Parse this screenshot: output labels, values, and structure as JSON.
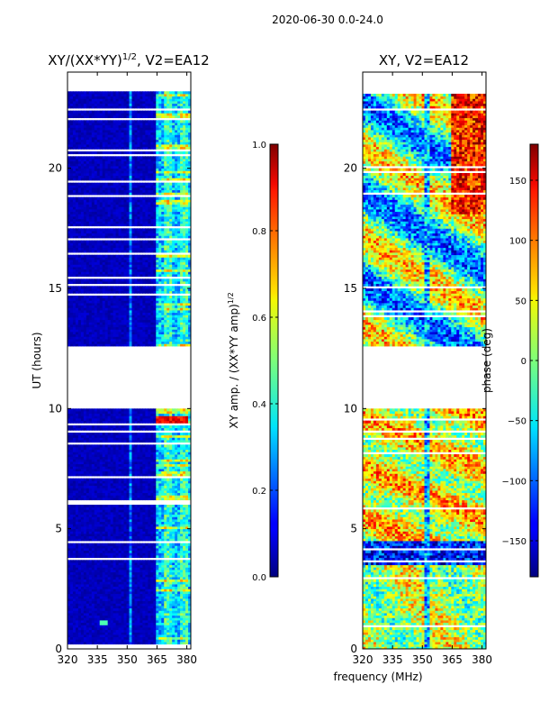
{
  "figure": {
    "suptitle": "2020-06-30 0.0-24.0",
    "xlabel_shared": "frequency (MHz)"
  },
  "colors": {
    "axes_edge": "#000000",
    "background": "#ffffff",
    "flag_gap": "#ffffff"
  },
  "chart_data": [
    {
      "type": "heatmap",
      "title_prefix": "XY/(XX*YY)",
      "title_exp": "1/2",
      "title_suffix": ", V2=EA12",
      "xlabel": "",
      "ylabel": "UT (hours)",
      "xlim": [
        320,
        382
      ],
      "ylim": [
        0,
        24
      ],
      "xticks": [
        320,
        335,
        350,
        365,
        380
      ],
      "yticks": [
        0,
        5,
        10,
        15,
        20
      ],
      "data_time_range": [
        0,
        23.2
      ],
      "flagged_time_ranges": [
        [
          9.95,
          12.5
        ]
      ],
      "colormap": "jet",
      "colorbar": {
        "label_prefix": "XY amp. / (XX*YY amp)",
        "label_exp": "1/2",
        "range": [
          0.0,
          1.0
        ],
        "ticks": [
          0.0,
          0.2,
          0.4,
          0.6,
          0.8,
          1.0
        ],
        "tick_labels": [
          "0.0",
          "0.2",
          "0.4",
          "0.6",
          "0.8",
          "1.0"
        ]
      },
      "features": [
        {
          "freq_range": [
            320,
            350
          ],
          "typical_value": 0.05
        },
        {
          "freq_range": [
            351,
            352
          ],
          "typical_value": 0.3
        },
        {
          "freq_range": [
            364,
            382
          ],
          "typical_value": 0.35
        },
        {
          "freq_range": [
            364,
            380
          ],
          "time_range": [
            9.2,
            9.6
          ],
          "typical_value": 0.85
        }
      ]
    },
    {
      "type": "heatmap",
      "title": "XY, V2=EA12",
      "xlabel": "",
      "ylabel": "",
      "xlim": [
        320,
        382
      ],
      "ylim": [
        0,
        24
      ],
      "xticks": [
        320,
        335,
        350,
        365,
        380
      ],
      "yticks": [
        0,
        5,
        10,
        15,
        20
      ],
      "data_time_range": [
        0,
        23.2
      ],
      "flagged_time_ranges": [
        [
          9.95,
          12.5
        ]
      ],
      "colormap": "jet",
      "colorbar": {
        "label": "phase (deg)",
        "range": [
          -180,
          180
        ],
        "ticks": [
          -150,
          -100,
          -50,
          0,
          50,
          100,
          150
        ],
        "tick_labels": [
          "−150",
          "−100",
          "−50",
          "0",
          "50",
          "100",
          "150"
        ]
      },
      "features": [
        {
          "time_range": [
            0,
            3.5
          ],
          "typical_value": 20
        },
        {
          "time_range": [
            3.5,
            4.5
          ],
          "typical_value": -150
        },
        {
          "time_range": [
            4.5,
            10
          ],
          "typical_value": 60
        },
        {
          "time_range": [
            12.5,
            23.2
          ],
          "typical_value": -20
        }
      ]
    }
  ]
}
